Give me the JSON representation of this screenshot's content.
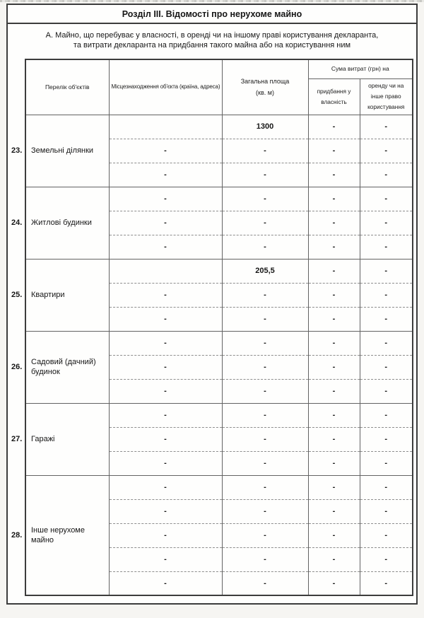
{
  "page": {
    "section_title": "Розділ III. Відомості про нерухоме майно",
    "subtitle_line1": "А. Майно, що перебуває у власності, в оренді чи на іншому праві користування декларанта,",
    "subtitle_line2": "та витрати декларанта на придбання такого майна або на користування ним"
  },
  "table": {
    "headers": {
      "items": "Перелік об'єктів",
      "location": "Місцезнаходження об'єкта (країна, адреса)",
      "area_line1": "Загальна площа",
      "area_line2": "(кв. м)",
      "expenses_group": "Сума витрат (грн) на",
      "purchase": "придбання у власність",
      "rent": "оренду чи на інше право користування"
    },
    "groups": [
      {
        "number": "23.",
        "label": "Земельні ділянки",
        "rows": [
          {
            "location": "",
            "area": "1300",
            "purchase": "-",
            "rent": "-"
          },
          {
            "location": "-",
            "area": "-",
            "purchase": "-",
            "rent": "-"
          },
          {
            "location": "-",
            "area": "-",
            "purchase": "-",
            "rent": "-"
          }
        ]
      },
      {
        "number": "24.",
        "label": "Житлові будинки",
        "rows": [
          {
            "location": "-",
            "area": "-",
            "purchase": "-",
            "rent": "-"
          },
          {
            "location": "-",
            "area": "-",
            "purchase": "-",
            "rent": "-"
          },
          {
            "location": "-",
            "area": "-",
            "purchase": "-",
            "rent": "-"
          }
        ]
      },
      {
        "number": "25.",
        "label": "Квартири",
        "rows": [
          {
            "location": "",
            "area": "205,5",
            "purchase": "-",
            "rent": "-"
          },
          {
            "location": "-",
            "area": "-",
            "purchase": "-",
            "rent": "-"
          },
          {
            "location": "-",
            "area": "-",
            "purchase": "-",
            "rent": "-"
          }
        ]
      },
      {
        "number": "26.",
        "label": "Садовий (дачний) будинок",
        "rows": [
          {
            "location": "-",
            "area": "-",
            "purchase": "-",
            "rent": "-"
          },
          {
            "location": "-",
            "area": "-",
            "purchase": "-",
            "rent": "-"
          },
          {
            "location": "-",
            "area": "-",
            "purchase": "-",
            "rent": "-"
          }
        ]
      },
      {
        "number": "27.",
        "label": "Гаражі",
        "rows": [
          {
            "location": "-",
            "area": "-",
            "purchase": "-",
            "rent": "-"
          },
          {
            "location": "-",
            "area": "-",
            "purchase": "-",
            "rent": "-"
          },
          {
            "location": "-",
            "area": "-",
            "purchase": "-",
            "rent": "-"
          }
        ]
      },
      {
        "number": "28.",
        "label": "Інше нерухоме майно",
        "rows": [
          {
            "location": "-",
            "area": "-",
            "purchase": "-",
            "rent": "-"
          },
          {
            "location": "-",
            "area": "-",
            "purchase": "-",
            "rent": "-"
          },
          {
            "location": "-",
            "area": "-",
            "purchase": "-",
            "rent": "-"
          },
          {
            "location": "-",
            "area": "-",
            "purchase": "-",
            "rent": "-"
          },
          {
            "location": "-",
            "area": "-",
            "purchase": "-",
            "rent": "-"
          }
        ]
      }
    ]
  }
}
